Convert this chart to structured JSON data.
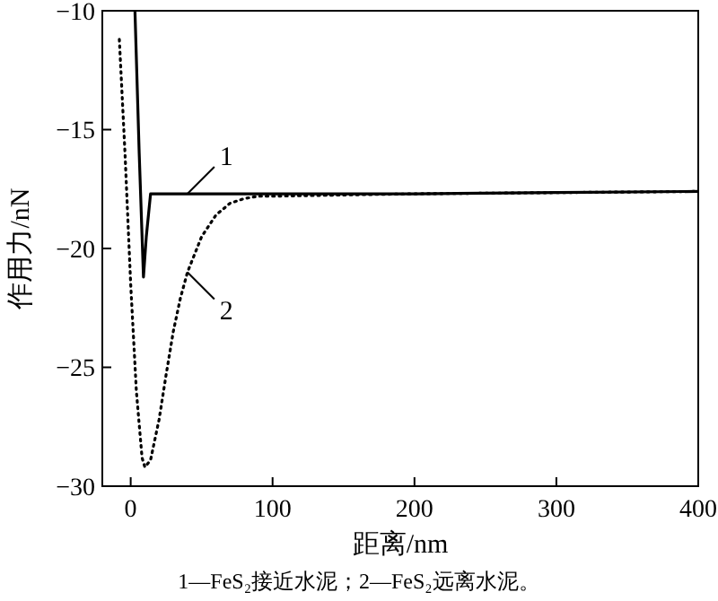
{
  "chart_data": {
    "type": "line",
    "xlabel": "距离/nm",
    "ylabel": "作用力/nN",
    "xlim": [
      -20,
      400
    ],
    "ylim": [
      -30,
      -10
    ],
    "xticks": [
      0,
      100,
      200,
      300,
      400
    ],
    "yticks": [
      -30,
      -25,
      -20,
      -15,
      -10
    ],
    "marker": "none",
    "series": [
      {
        "color": "#000000",
        "line_style": "solid",
        "x": [
          3,
          6,
          9,
          11,
          14,
          20,
          50,
          100,
          200,
          300,
          400
        ],
        "values": [
          -10,
          -16,
          -21.2,
          -19.5,
          -17.7,
          -17.7,
          -17.7,
          -17.7,
          -17.7,
          -17.65,
          -17.6
        ]
      },
      {
        "color": "#000000",
        "line_style": "dotted",
        "x": [
          -8,
          -4,
          0,
          4,
          8,
          10,
          14,
          20,
          25,
          30,
          35,
          40,
          50,
          60,
          70,
          80,
          90,
          100,
          150,
          200,
          300,
          400
        ],
        "values": [
          -11.2,
          -16,
          -21.5,
          -26,
          -28.8,
          -29.2,
          -28.9,
          -27.2,
          -25.3,
          -23.5,
          -22.1,
          -21,
          -19.5,
          -18.6,
          -18.1,
          -17.9,
          -17.8,
          -17.8,
          -17.75,
          -17.7,
          -17.65,
          -17.6
        ]
      }
    ],
    "annotations": [
      {
        "text": "1",
        "x": 40,
        "y": -17.7
      },
      {
        "text": "2",
        "x": 40,
        "y": -21
      },
      "1—FeS₂接近水泥；2—FeS₂远离水泥。"
    ]
  }
}
